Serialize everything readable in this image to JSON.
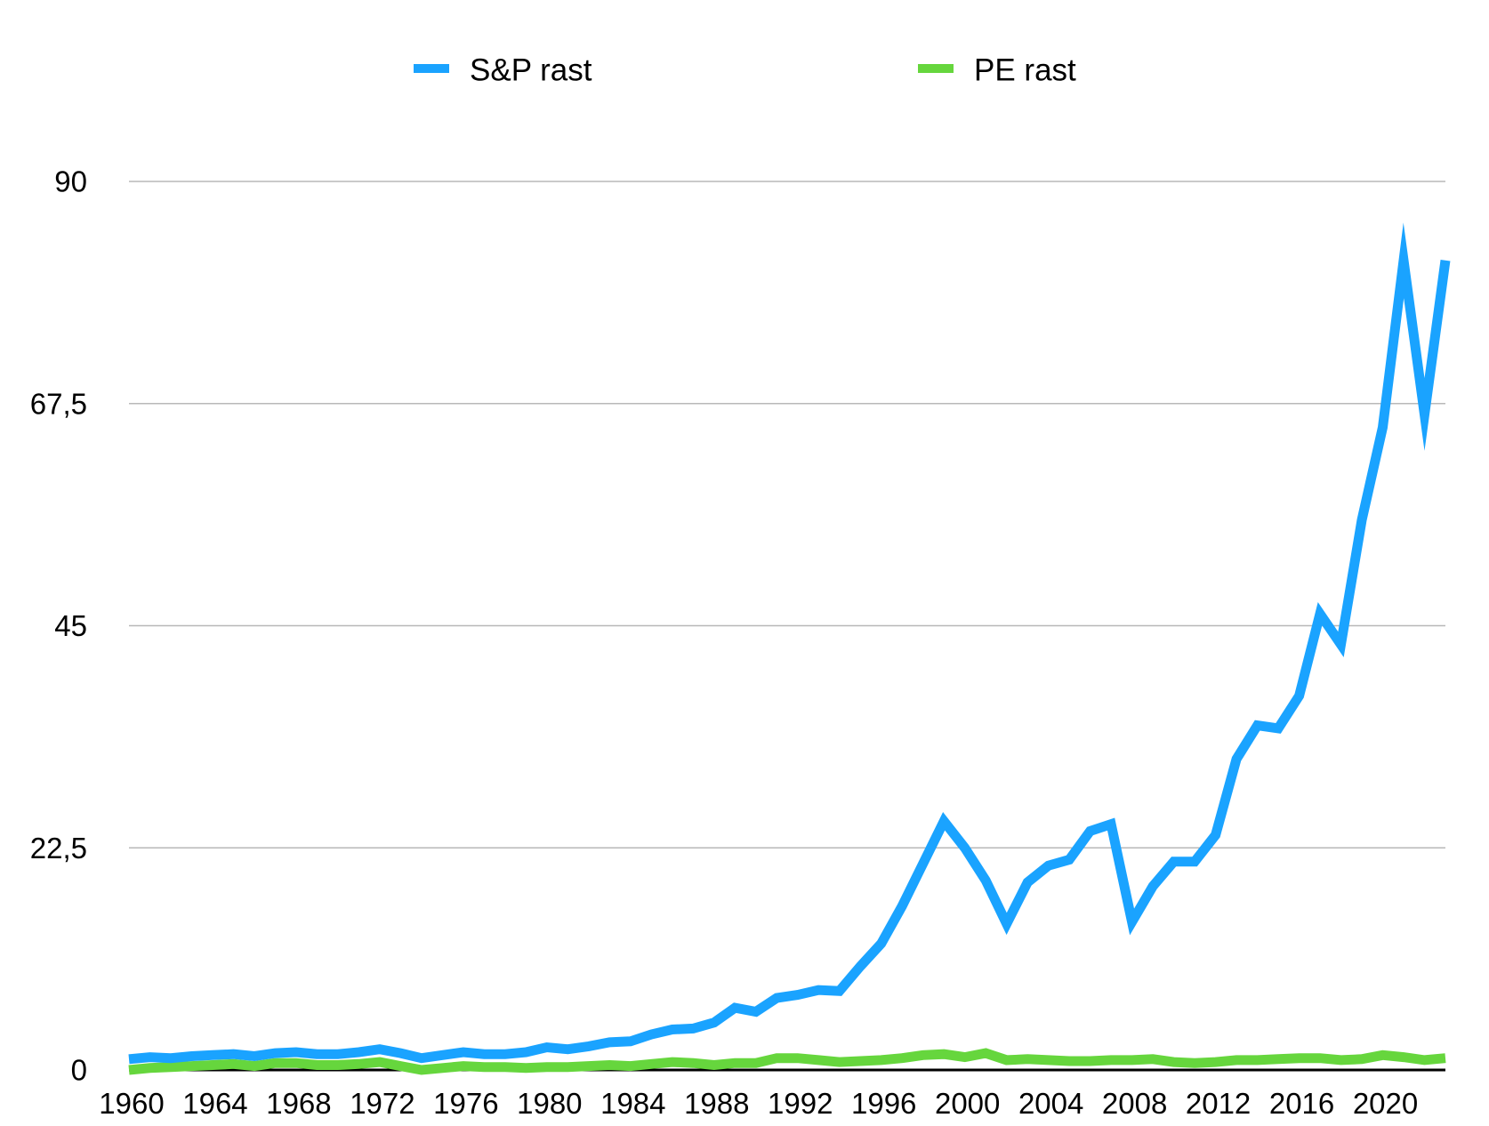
{
  "chart_data": {
    "type": "line",
    "title": "",
    "xlabel": "",
    "ylabel": "",
    "x": [
      1960,
      1961,
      1962,
      1963,
      1964,
      1965,
      1966,
      1967,
      1968,
      1969,
      1970,
      1971,
      1972,
      1973,
      1974,
      1975,
      1976,
      1977,
      1978,
      1979,
      1980,
      1981,
      1982,
      1983,
      1984,
      1985,
      1986,
      1987,
      1988,
      1989,
      1990,
      1991,
      1992,
      1993,
      1994,
      1995,
      1996,
      1997,
      1998,
      1999,
      2000,
      2001,
      2002,
      2003,
      2004,
      2005,
      2006,
      2007,
      2008,
      2009,
      2010,
      2011,
      2012,
      2013,
      2014,
      2015,
      2016,
      2017,
      2018,
      2019,
      2020,
      2021,
      2022,
      2023
    ],
    "x_ticks": [
      "1960",
      "1964",
      "1968",
      "1972",
      "1976",
      "1980",
      "1984",
      "1988",
      "1992",
      "1996",
      "2000",
      "2004",
      "2008",
      "2012",
      "2016",
      "2020"
    ],
    "y_ticks": [
      "0",
      "22,5",
      "45",
      "67,5",
      "90"
    ],
    "ylim": [
      0,
      90
    ],
    "grid": true,
    "legend_position": "top",
    "series": [
      {
        "name": "S&P rast",
        "color": "#1aa3ff",
        "values": [
          1.1,
          1.3,
          1.2,
          1.4,
          1.5,
          1.6,
          1.4,
          1.7,
          1.8,
          1.6,
          1.6,
          1.8,
          2.1,
          1.7,
          1.2,
          1.5,
          1.8,
          1.6,
          1.6,
          1.8,
          2.3,
          2.1,
          2.4,
          2.8,
          2.9,
          3.6,
          4.1,
          4.2,
          4.8,
          6.3,
          5.9,
          7.3,
          7.6,
          8.1,
          8.0,
          10.5,
          12.8,
          16.6,
          20.9,
          25.2,
          22.5,
          19.2,
          14.8,
          19.0,
          20.7,
          21.3,
          24.2,
          24.9,
          15.0,
          18.6,
          21.1,
          21.1,
          23.8,
          31.5,
          34.9,
          34.6,
          37.9,
          46.2,
          43.1,
          55.7,
          65.1,
          82.0,
          66.4,
          82.0
        ]
      },
      {
        "name": "PE rast",
        "color": "#66d63d",
        "values": [
          0.0,
          0.2,
          0.3,
          0.4,
          0.5,
          0.6,
          0.4,
          0.7,
          0.7,
          0.5,
          0.5,
          0.6,
          0.8,
          0.4,
          0.0,
          0.2,
          0.4,
          0.3,
          0.3,
          0.2,
          0.3,
          0.3,
          0.4,
          0.5,
          0.4,
          0.6,
          0.8,
          0.7,
          0.5,
          0.7,
          0.7,
          1.2,
          1.2,
          1.0,
          0.8,
          0.9,
          1.0,
          1.2,
          1.5,
          1.6,
          1.3,
          1.7,
          1.0,
          1.1,
          1.0,
          0.9,
          0.9,
          1.0,
          1.0,
          1.1,
          0.8,
          0.7,
          0.8,
          1.0,
          1.0,
          1.1,
          1.2,
          1.2,
          1.0,
          1.1,
          1.5,
          1.3,
          1.0,
          1.2
        ]
      }
    ]
  }
}
